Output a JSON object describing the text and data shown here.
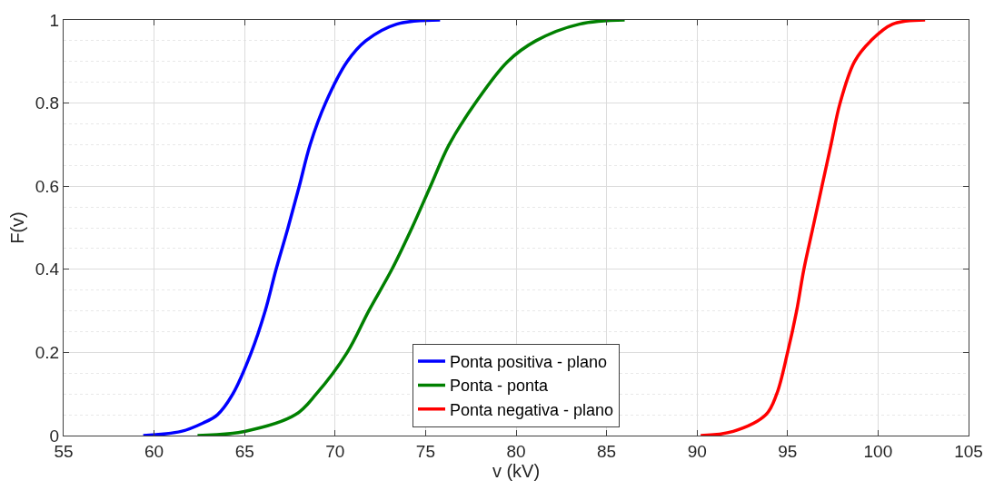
{
  "chart_data": {
    "type": "line",
    "xlabel": "v (kV)",
    "ylabel": "F(v)",
    "xlim": [
      55,
      105
    ],
    "xticks": [
      55,
      60,
      65,
      70,
      75,
      80,
      85,
      90,
      95,
      100,
      105
    ],
    "ylim": [
      0,
      1
    ],
    "yticks": [
      0,
      {
        "value": 0.2,
        "label": "0.2"
      },
      {
        "value": 0.4,
        "label": "0.4"
      },
      {
        "value": 0.6,
        "label": "0.6"
      },
      {
        "value": 0.8,
        "label": "0.8"
      },
      1
    ],
    "grid": true,
    "legend": "bottom",
    "line_style": "solid",
    "marker": "none",
    "series": [
      {
        "name": "Ponta positiva - plano",
        "color": "#0000ff",
        "x": [
          59.4,
          61.5,
          62.7,
          63.5,
          64.35,
          65.37,
          66.14,
          66.74,
          67.4,
          68.02,
          68.62,
          69.47,
          70.67,
          71.7,
          73.4,
          75.8
        ],
        "values": [
          0,
          0.01,
          0.03,
          0.05,
          0.1,
          0.2,
          0.3,
          0.4,
          0.5,
          0.6,
          0.7,
          0.8,
          0.9,
          0.95,
          0.99,
          1
        ]
      },
      {
        "name": "Ponta - ponta",
        "color": "#008000",
        "x": [
          62.4,
          65.0,
          67.8,
          68.96,
          70.67,
          71.86,
          73.14,
          74.25,
          75.27,
          76.3,
          77.75,
          79.54,
          81.1,
          83.5,
          86.0
        ],
        "values": [
          0,
          0.01,
          0.05,
          0.1,
          0.2,
          0.3,
          0.4,
          0.5,
          0.6,
          0.7,
          0.8,
          0.9,
          0.95,
          0.99,
          1
        ]
      },
      {
        "name": "Ponta negativa - plano",
        "color": "#ff0000",
        "x": [
          90.2,
          92.0,
          93.8,
          94.4,
          95.0,
          95.5,
          95.9,
          96.4,
          96.9,
          97.4,
          97.9,
          98.7,
          99.6,
          100.8,
          102.6
        ],
        "values": [
          0,
          0.01,
          0.05,
          0.1,
          0.2,
          0.3,
          0.4,
          0.5,
          0.6,
          0.7,
          0.8,
          0.9,
          0.95,
          0.99,
          1
        ]
      }
    ]
  }
}
